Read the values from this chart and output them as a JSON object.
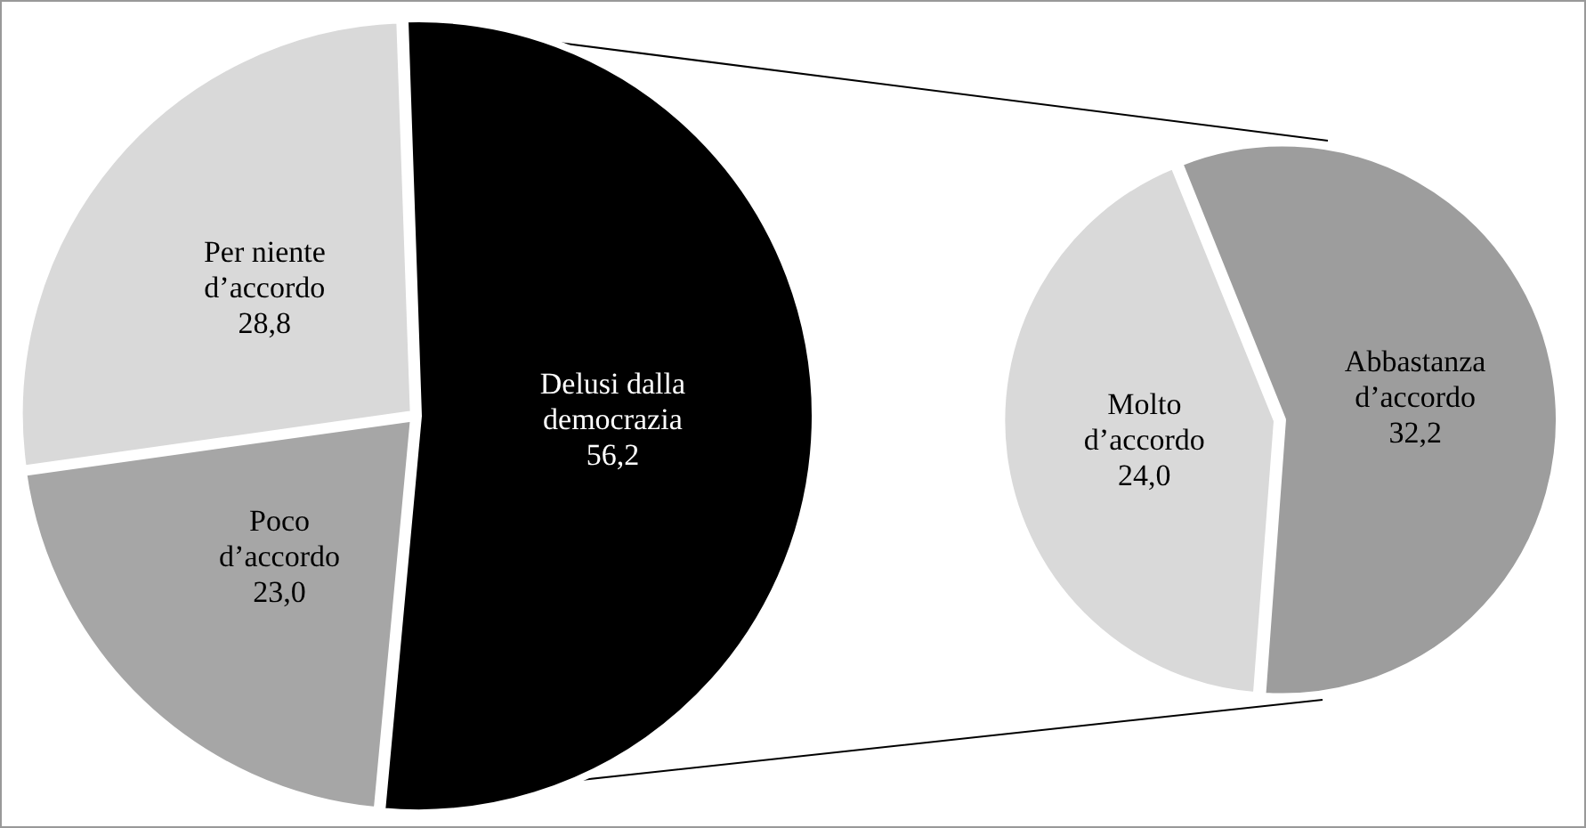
{
  "chart_data": [
    {
      "type": "pie",
      "categories": [
        "Delusi dalla democrazia",
        "Poco d’accordo",
        "Per niente d’accordo"
      ],
      "values": [
        56.2,
        23.0,
        28.8
      ],
      "value_labels": [
        "56,2",
        "23,0",
        "28,8"
      ],
      "colors": [
        "#000000",
        "#a6a6a6",
        "#d9d9d9"
      ],
      "legend": false
    },
    {
      "type": "pie",
      "categories": [
        "Abbastanza d’accordo",
        "Molto d’accordo"
      ],
      "values": [
        32.2,
        24.0
      ],
      "value_labels": [
        "32,2",
        "24,0"
      ],
      "colors": [
        "#9d9d9d",
        "#d9d9d9"
      ],
      "legend": false
    }
  ]
}
